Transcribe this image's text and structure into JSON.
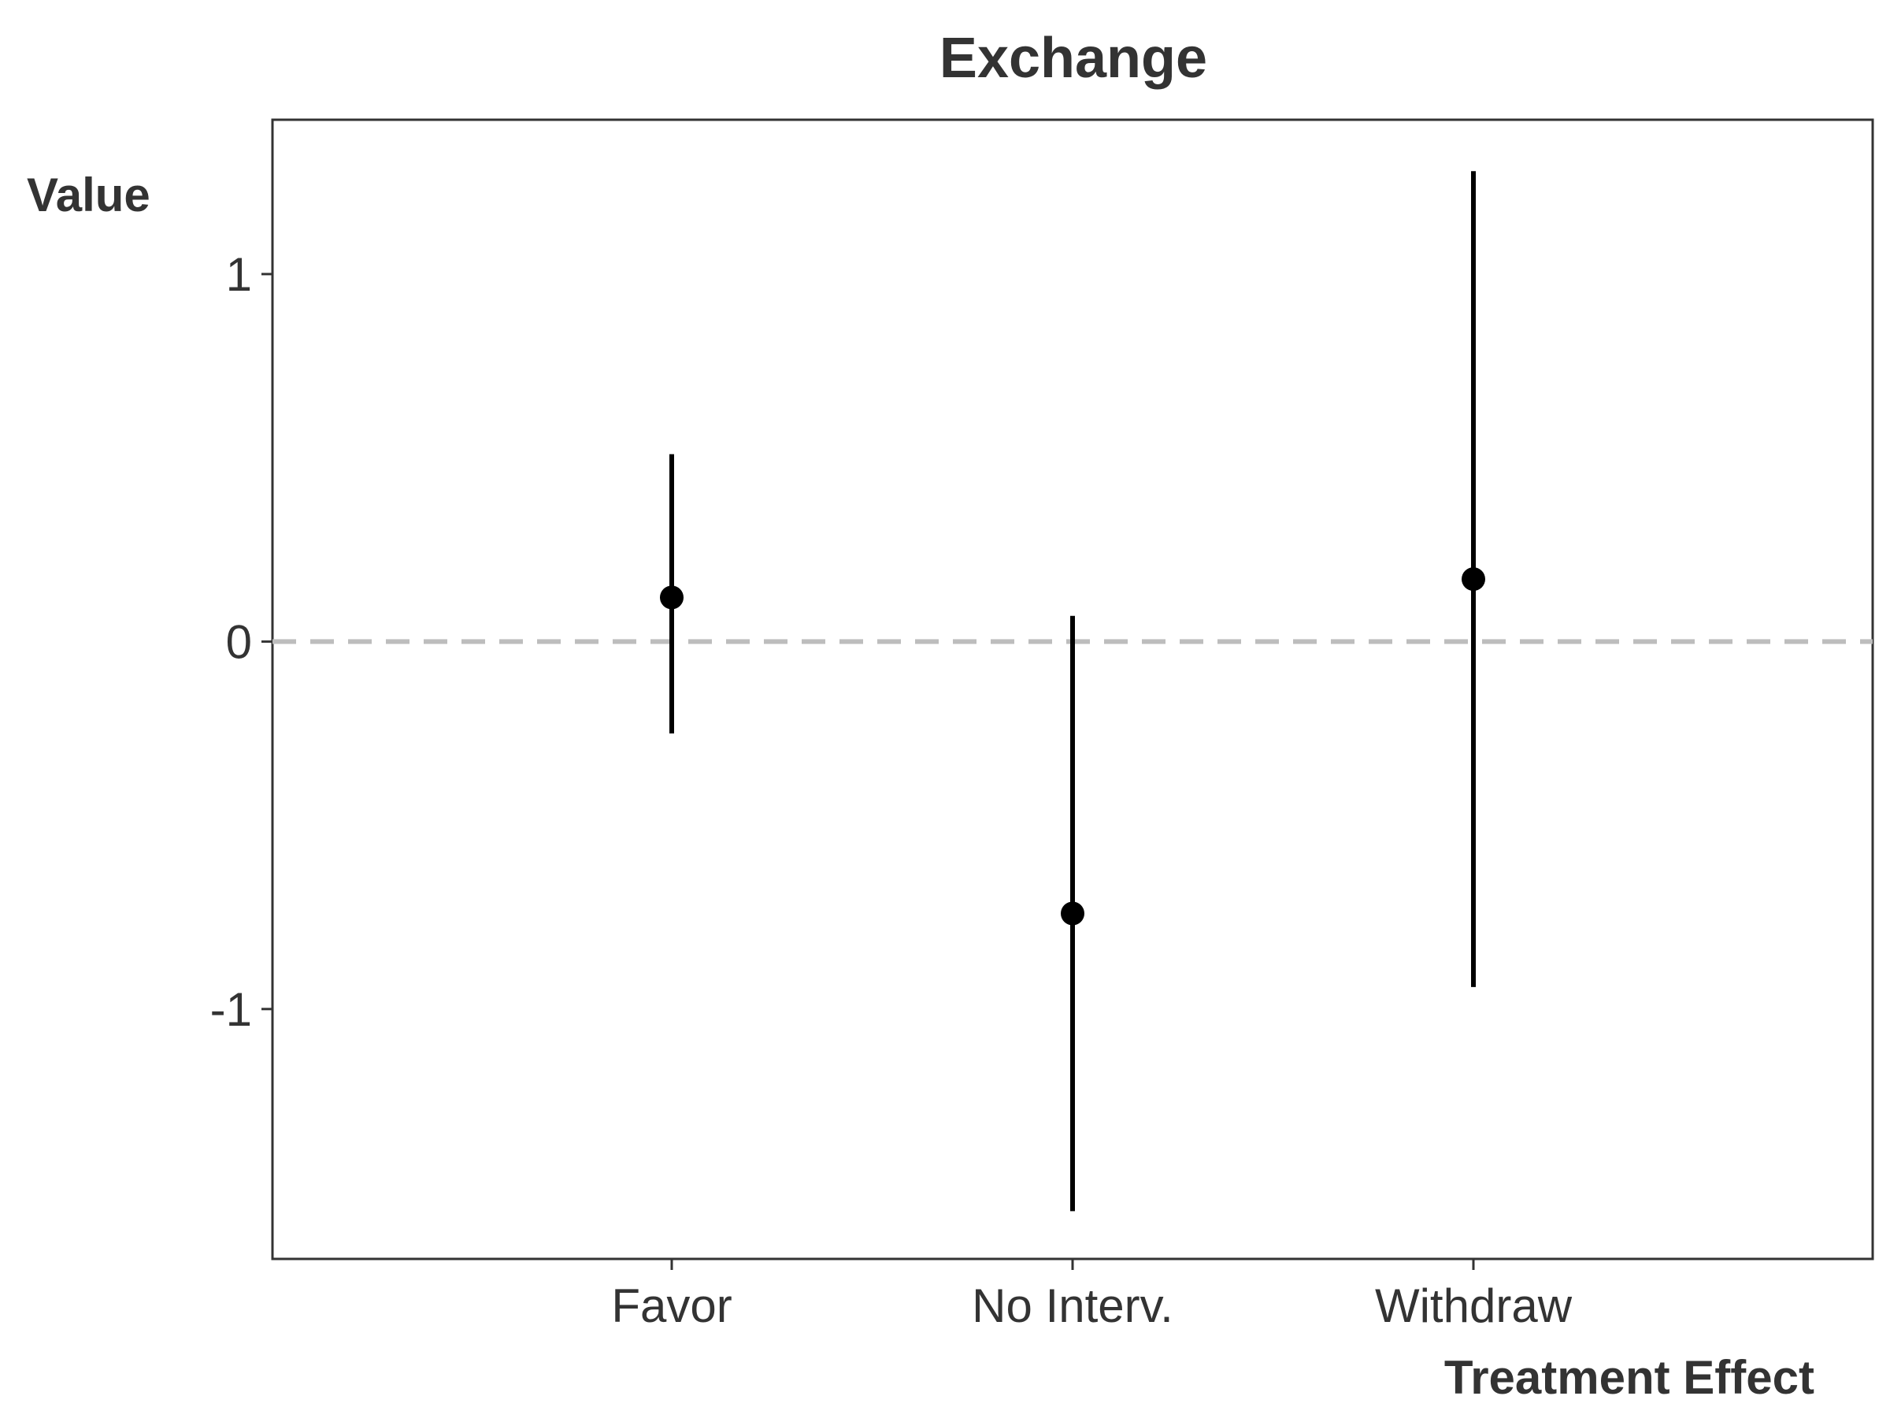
{
  "chart_data": {
    "type": "scatter",
    "title": "Exchange",
    "xlabel": "Treatment Effect",
    "ylabel": "Value",
    "categories": [
      "Favor",
      "No Interv.",
      "Withdraw"
    ],
    "estimates": [
      0.12,
      -0.74,
      0.17
    ],
    "ci_lower": [
      -0.25,
      -1.55,
      -0.94
    ],
    "ci_upper": [
      0.51,
      0.07,
      1.28
    ],
    "ylim": [
      -1.68,
      1.42
    ],
    "yticks": [
      -1,
      0,
      1
    ],
    "ytick_labels": [
      "-1",
      "0",
      "1"
    ],
    "reference_line": {
      "y": 0,
      "style": "dashed",
      "color": "#bdbdbd"
    },
    "grid": false,
    "legend": "none",
    "colors": {
      "marks": "#000000",
      "text": "#333333",
      "frame": "#333333"
    }
  }
}
